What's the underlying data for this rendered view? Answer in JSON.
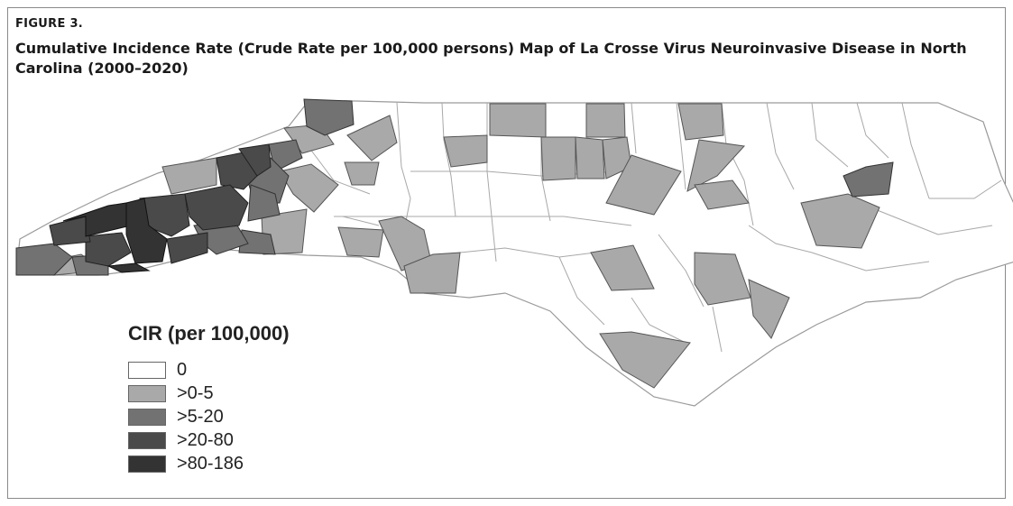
{
  "figure": {
    "label": "FIGURE 3.",
    "title": "Cumulative Incidence Rate (Crude Rate per 100,000 persons) Map of La Crosse Virus Neuroinvasive Disease in North Carolina (2000–2020)"
  },
  "legend": {
    "title": "CIR (per 100,000)",
    "items": [
      {
        "label": "0",
        "color": "#ffffff"
      },
      {
        "label": ">0-5",
        "color": "#a9a9a9"
      },
      {
        "label": ">5-20",
        "color": "#727272"
      },
      {
        "label": ">20-80",
        "color": "#4a4a4a"
      },
      {
        "label": ">80-186",
        "color": "#333333"
      }
    ]
  },
  "colors": {
    "county_border": "#9a9a9a",
    "frame_border": "#8a8a8a"
  }
}
